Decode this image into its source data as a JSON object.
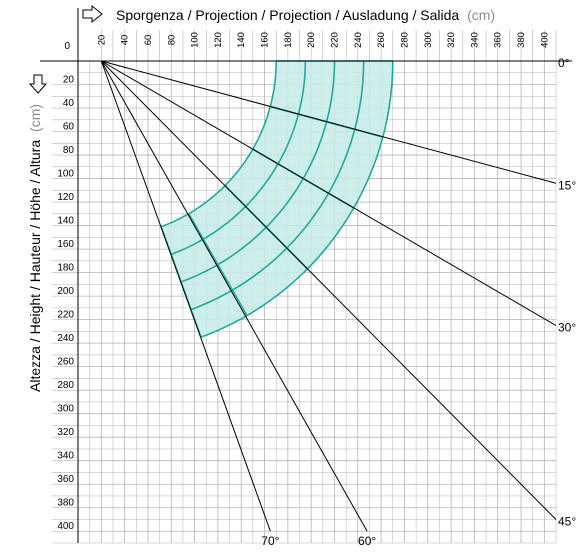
{
  "header": {
    "x_title": "Sporgenza / Projection / Projection / Ausladung / Salida",
    "x_unit": "(cm)",
    "y_title": "Altezza / Height / Hauteur / Höhe / Altura",
    "y_unit": "(cm)",
    "origin_label": "0"
  },
  "colors": {
    "grid": "#b4b4b4",
    "axis": "#000000",
    "zone_fill": "#c6ebe8",
    "zone_stroke": "#21a99e",
    "unit_text": "#8c8c8c"
  },
  "icons": {
    "x_direction": "right-arrow-outline-icon",
    "y_direction": "down-arrow-outline-icon"
  },
  "chart_data": {
    "type": "diagram",
    "x_axis": {
      "min": 0,
      "max": 410,
      "step": 20,
      "tick_labels": [
        "20",
        "40",
        "60",
        "80",
        "100",
        "120",
        "140",
        "160",
        "180",
        "200",
        "220",
        "240",
        "260",
        "280",
        "300",
        "320",
        "340",
        "360",
        "380",
        "400"
      ]
    },
    "y_axis": {
      "min": 0,
      "max": 410,
      "step": 20,
      "tick_labels": [
        "20",
        "40",
        "60",
        "80",
        "100",
        "120",
        "140",
        "160",
        "180",
        "200",
        "220",
        "240",
        "260",
        "280",
        "300",
        "320",
        "340",
        "360",
        "380",
        "400"
      ]
    },
    "pivot": [
      20,
      0
    ],
    "angle_lines": [
      {
        "label": "0°",
        "end": [
          410,
          0
        ]
      },
      {
        "label": "15°",
        "end": [
          410,
          104
        ]
      },
      {
        "label": "30°",
        "end": [
          410,
          225
        ]
      },
      {
        "label": "45°",
        "end": [
          410,
          390
        ]
      },
      {
        "label": "60°",
        "end": [
          248,
          400
        ]
      },
      {
        "label": "70°",
        "end": [
          165,
          400
        ]
      }
    ],
    "coverage_zone": {
      "center": [
        20,
        0
      ],
      "radii": [
        150,
        175,
        200,
        225,
        250
      ],
      "angle_range_deg": [
        0,
        70
      ],
      "division_angles_deg": [
        0,
        15,
        30,
        45,
        60,
        70
      ]
    }
  }
}
